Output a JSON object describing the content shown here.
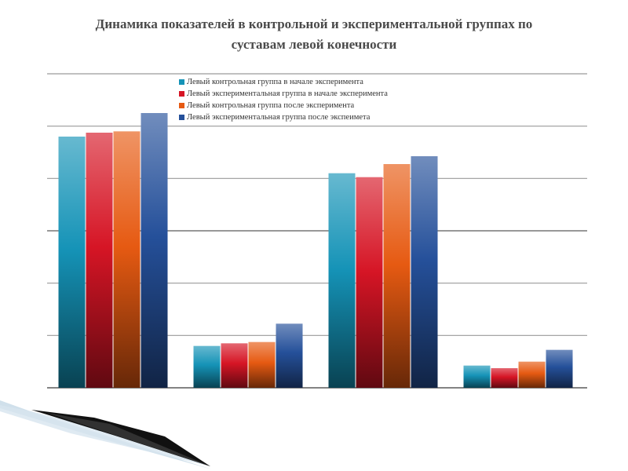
{
  "page": {
    "title_line1": "Динамика показателей  в контрольной и экспериментальной группах по",
    "title_line2": "суставам левой конечности"
  },
  "chart_data": {
    "type": "bar",
    "categories": [
      "",
      "",
      "",
      ""
    ],
    "series": [
      {
        "name": "Левый  контрольная группа в начале эксперимента",
        "color": "#1593b7",
        "values": [
          96,
          16,
          82,
          8.5
        ]
      },
      {
        "name": "Левый  экспериментальная группа в начале эксперимента",
        "color": "#d61525",
        "values": [
          97.5,
          17,
          80.5,
          7.5
        ]
      },
      {
        "name": "Левый  контрольная группа после эксперимента",
        "color": "#e65a12",
        "values": [
          98,
          17.5,
          85.5,
          10
        ]
      },
      {
        "name": "Левый  экспериментальная группа после экспеимета",
        "color": "#25509a",
        "values": [
          105,
          24.5,
          88.5,
          14.5
        ]
      }
    ],
    "ylim": [
      0,
      120
    ],
    "gridlines": [
      0,
      20,
      40,
      60,
      80,
      100,
      120
    ],
    "grid": true,
    "legend_position": "top-center",
    "title": "",
    "xlabel": "",
    "ylabel": ""
  }
}
